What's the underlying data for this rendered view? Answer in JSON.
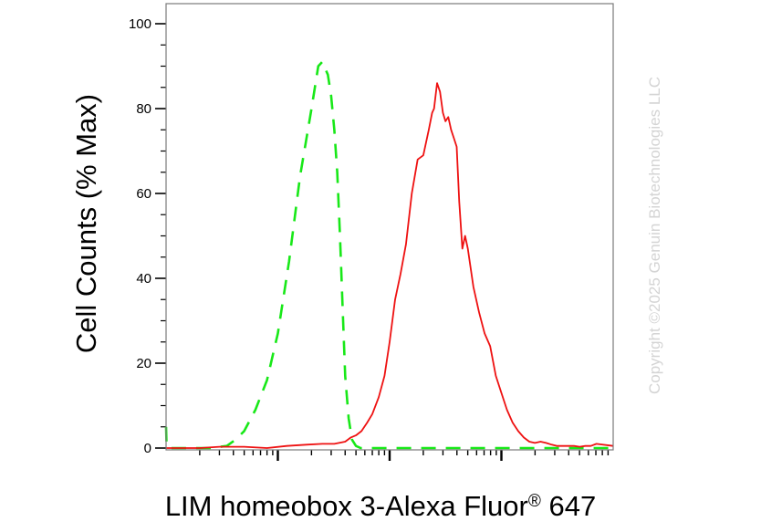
{
  "chart_data": {
    "type": "line",
    "xscale": "log",
    "xlim": [
      1,
      10000
    ],
    "ylim": [
      0,
      100
    ],
    "ylabel": "Cell Counts (% Max)",
    "xlabel": {
      "text": "LIM homeobox 3-Alexa Fluor",
      "sup": "®",
      "suffix": " 647"
    },
    "y_ticks": [
      {
        "value": 0,
        "label": "0"
      },
      {
        "value": 20,
        "label": "20"
      },
      {
        "value": 40,
        "label": "40"
      },
      {
        "value": 60,
        "label": "60"
      },
      {
        "value": 80,
        "label": "80"
      },
      {
        "value": 100,
        "label": "100"
      }
    ],
    "series": [
      {
        "style": "dashed",
        "color": "#18e818",
        "x": [
          1,
          1.01,
          1.05,
          2.5,
          3.5,
          4.2,
          5,
          6.3,
          8,
          10,
          12.6,
          15.8,
          20,
          23,
          25,
          28,
          30,
          32,
          34,
          36,
          38,
          40,
          43,
          46,
          50,
          55,
          60,
          70,
          80,
          100,
          150,
          10000
        ],
        "y": [
          5,
          1,
          0,
          0,
          0.5,
          2,
          4,
          9,
          16,
          27,
          44,
          64,
          80,
          90,
          91,
          88,
          83,
          75,
          65,
          50,
          33,
          17,
          7,
          2,
          0.5,
          0,
          0,
          0,
          0,
          0,
          0,
          0
        ]
      },
      {
        "style": "solid",
        "color": "#ee1111",
        "x": [
          1,
          2,
          3,
          5,
          8,
          12,
          18,
          25,
          32,
          40,
          45,
          50,
          56,
          63,
          70,
          80,
          90,
          100,
          112,
          125,
          140,
          158,
          178,
          200,
          224,
          240,
          250,
          266,
          282,
          300,
          316,
          335,
          355,
          376,
          398,
          420,
          447,
          473,
          501,
          562,
          631,
          708,
          794,
          891,
          1000,
          1122,
          1259,
          1413,
          1585,
          1778,
          1995,
          2239,
          2512,
          2818,
          3162,
          3548,
          3981,
          4467,
          5012,
          5623,
          6310,
          7079,
          10000
        ],
        "y": [
          0,
          0,
          0.3,
          0.3,
          0,
          0.5,
          0.8,
          1,
          1,
          1.5,
          2.5,
          3,
          4,
          6,
          8,
          12,
          17,
          25,
          35,
          41,
          48,
          60,
          68,
          69,
          75,
          79,
          80,
          86,
          84,
          79,
          77,
          78,
          75,
          73,
          71,
          58,
          47,
          50,
          47,
          38,
          32,
          27,
          24,
          17,
          13,
          9,
          6,
          4,
          2.5,
          1.5,
          1.2,
          1.5,
          1.2,
          0.8,
          0.5,
          0.5,
          0.5,
          0.5,
          0.3,
          0.5,
          0.5,
          1,
          0.5
        ]
      }
    ]
  },
  "watermark": "Copyright ©2025 Genuin Biotechnologies LLC"
}
